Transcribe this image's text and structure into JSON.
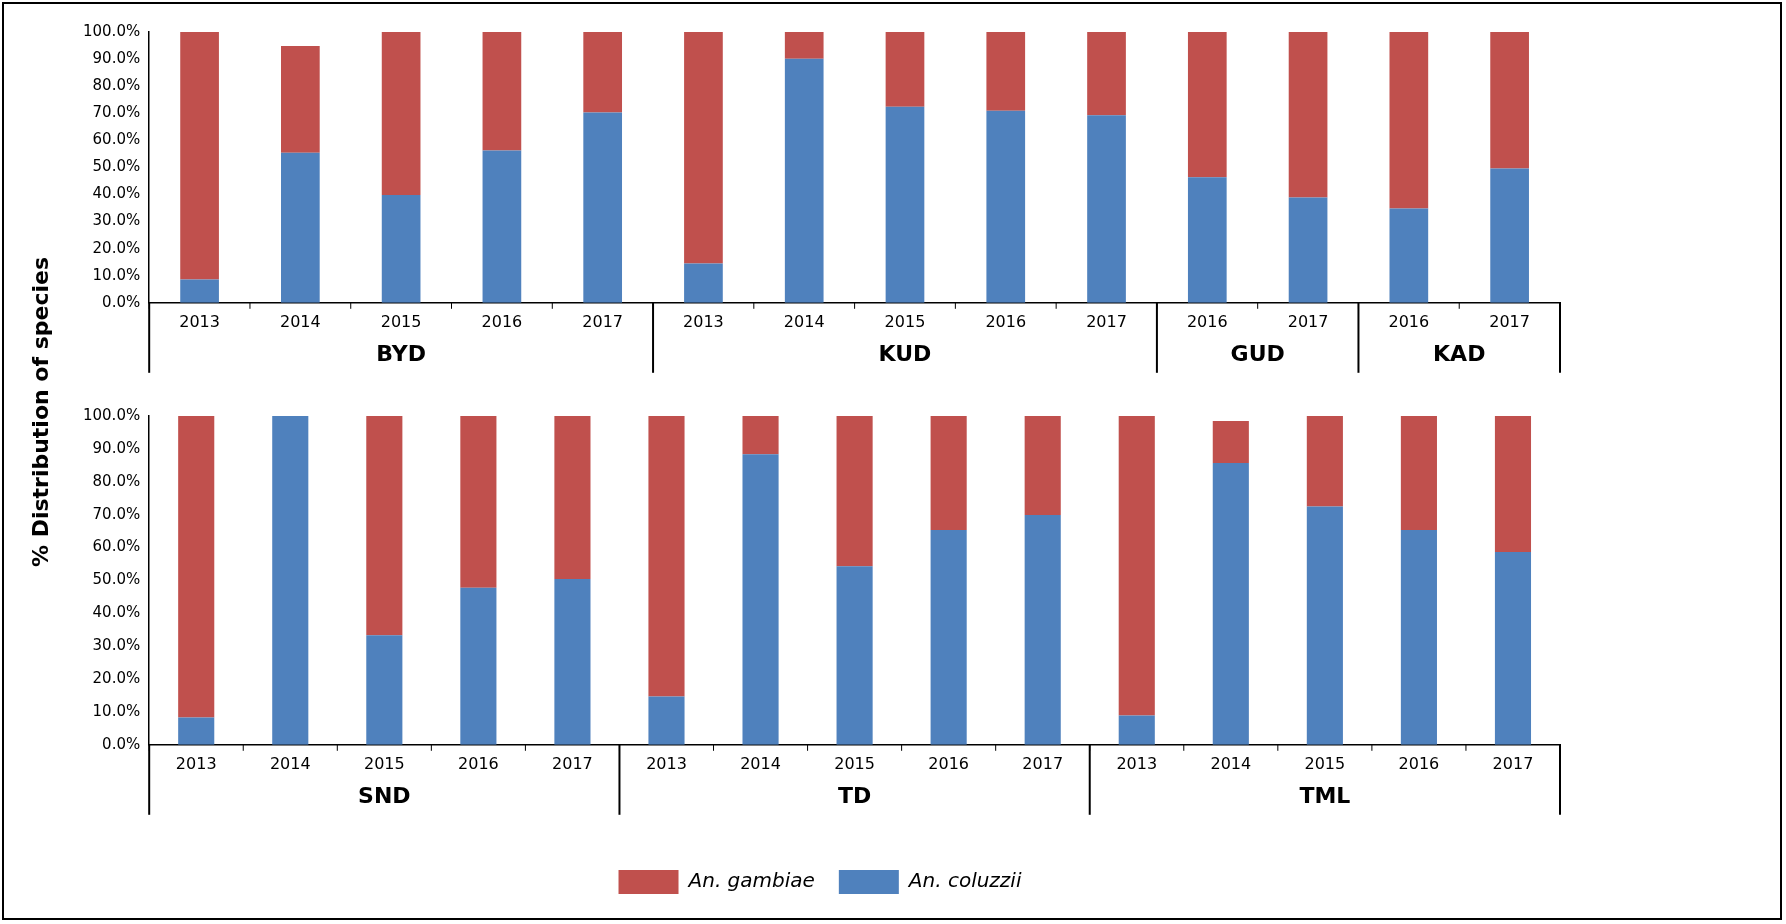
{
  "chart_data": [
    {
      "type": "bar",
      "stacked": true,
      "ylabel": "% Distribution of species",
      "categories": [
        "2013",
        "2014",
        "2015",
        "2016",
        "2017",
        "2013",
        "2014",
        "2015",
        "2016",
        "2017",
        "2016",
        "2017",
        "2016",
        "2017"
      ],
      "series": [
        {
          "color": "#4f81bd",
          "values": [
            8.6,
            55.4,
            39.8,
            56.2,
            70.3,
            14.5,
            90.1,
            72.4,
            70.9,
            69.3,
            46.4,
            38.9,
            34.8,
            49.6
          ]
        },
        {
          "color": "#c0504d",
          "values": [
            91.4,
            39.4,
            60.2,
            43.8,
            29.7,
            85.5,
            9.9,
            27.6,
            29.1,
            30.7,
            53.6,
            61.1,
            65.2,
            50.4
          ]
        }
      ],
      "ylim": [
        0,
        100
      ],
      "yticks": [
        {
          "value": 0,
          "label": "0.0%"
        },
        {
          "value": 10,
          "label": "10.0%"
        },
        {
          "value": 20,
          "label": "20.0%"
        },
        {
          "value": 30,
          "label": "30.0%"
        },
        {
          "value": 40,
          "label": "40.0%"
        },
        {
          "value": 50,
          "label": "50.0%"
        },
        {
          "value": 60,
          "label": "60.0%"
        },
        {
          "value": 70,
          "label": "70.0%"
        },
        {
          "value": 80,
          "label": "80.0%"
        },
        {
          "value": 90,
          "label": "90.0%"
        },
        {
          "value": 100,
          "label": "100.0%"
        }
      ],
      "annotations": [
        "BYD",
        "KUD",
        "GUD",
        "KAD"
      ],
      "grid": false,
      "legend": false
    },
    {
      "type": "bar",
      "stacked": true,
      "categories": [
        "2013",
        "2014",
        "2015",
        "2016",
        "2017",
        "2013",
        "2014",
        "2015",
        "2016",
        "2017",
        "2013",
        "2014",
        "2015",
        "2016",
        "2017"
      ],
      "series": [
        {
          "name": "An. coluzzii",
          "color": "#4f81bd",
          "values": [
            8.3,
            100,
            33.3,
            47.8,
            50.4,
            14.7,
            88.4,
            54.3,
            65.3,
            69.9,
            8.9,
            85.7,
            72.5,
            65.3,
            58.6
          ]
        },
        {
          "name": "An. gambiae",
          "color": "#c0504d",
          "values": [
            91.7,
            0,
            66.7,
            52.2,
            49.6,
            85.3,
            11.6,
            45.7,
            34.7,
            30.1,
            91.1,
            12.8,
            27.5,
            34.7,
            41.4
          ]
        }
      ],
      "ylim": [
        0,
        100
      ],
      "yticks": [
        {
          "value": 0,
          "label": "0.0%"
        },
        {
          "value": 10,
          "label": "10.0%"
        },
        {
          "value": 20,
          "label": "20.0%"
        },
        {
          "value": 30,
          "label": "30.0%"
        },
        {
          "value": 40,
          "label": "40.0%"
        },
        {
          "value": 50,
          "label": "50.0%"
        },
        {
          "value": 60,
          "label": "60.0%"
        },
        {
          "value": 70,
          "label": "70.0%"
        },
        {
          "value": 80,
          "label": "80.0%"
        },
        {
          "value": 90,
          "label": "90.0%"
        },
        {
          "value": 100,
          "label": "100.0%"
        }
      ],
      "annotations": [
        "SND",
        "TD",
        "TML"
      ],
      "grid": false,
      "legend": "bottom"
    }
  ]
}
